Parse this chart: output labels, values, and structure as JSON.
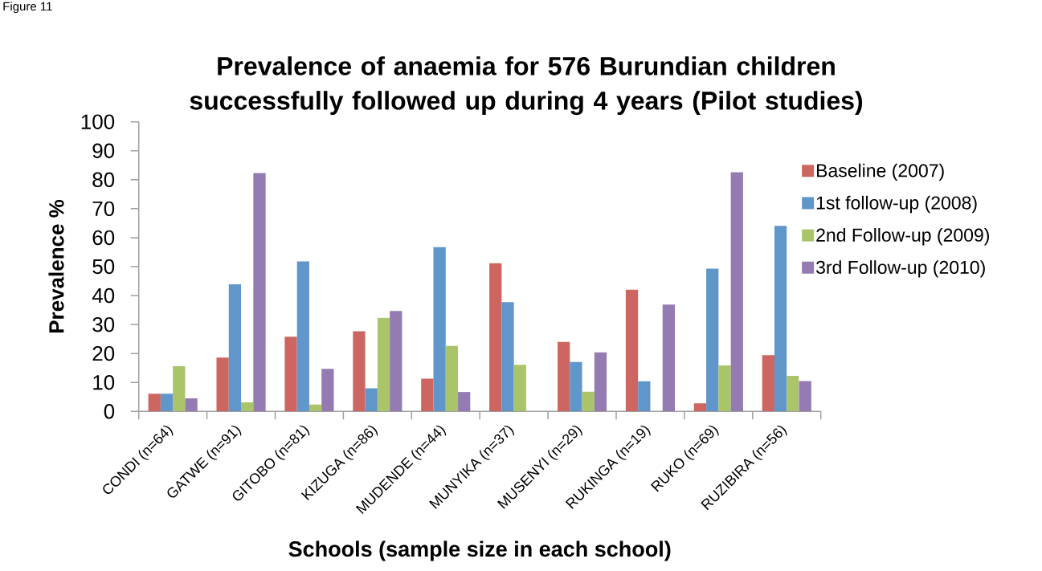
{
  "chart_data": {
    "type": "bar",
    "title": "Prevalence of anaemia for 576 Burundian children successfully followed up during 4 years (Pilot studies)",
    "xlabel": "Schools (sample size in each school)",
    "ylabel": "Prevalence %",
    "annotations": [
      "Figure 11"
    ],
    "categories": [
      "CONDI (n=64)",
      "GATWE (n=91)",
      "GITOBO (n=81)",
      "KIZUGA (n=86)",
      "MUDENDE (n=44)",
      "MUNYIKA (n=37)",
      "MUSENYI (n=29)",
      "RUKINGA (n=19)",
      "RUKO (n=69)",
      "RUZIBIRA (n=56)"
    ],
    "series": [
      {
        "name": "Baseline (2007)",
        "color": "#cd6660",
        "values": [
          6.1,
          18.6,
          25.8,
          27.7,
          11.3,
          51.2,
          24.0,
          42.0,
          2.8,
          19.4
        ]
      },
      {
        "name": "1st follow-up (2008)",
        "color": "#6196cb",
        "values": [
          6.1,
          43.9,
          51.8,
          8.0,
          56.7,
          37.7,
          17.1,
          10.4,
          49.3,
          64.1
        ]
      },
      {
        "name": "2nd Follow-up (2009)",
        "color": "#aac46a",
        "values": [
          15.6,
          3.1,
          2.4,
          32.3,
          22.6,
          16.1,
          6.8,
          null,
          15.9,
          12.3
        ]
      },
      {
        "name": "3rd Follow-up (2010)",
        "color": "#947bb1",
        "values": [
          4.5,
          82.3,
          14.7,
          34.7,
          6.7,
          null,
          20.4,
          36.9,
          82.6,
          10.5
        ]
      }
    ],
    "ylim": [
      0,
      100
    ],
    "yticks": [
      0,
      10,
      20,
      30,
      40,
      50,
      60,
      70,
      80,
      90,
      100
    ],
    "legend": "right"
  }
}
